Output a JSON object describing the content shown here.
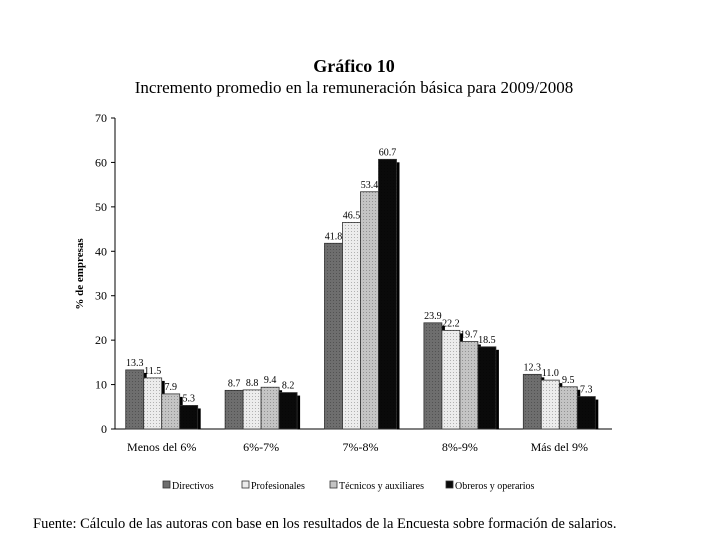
{
  "chart_data": {
    "type": "bar",
    "title": "Gráfico 10",
    "subtitle": "Incremento promedio en la remuneración básica para 2009/2008",
    "xlabel": "",
    "ylabel": "% de empresas",
    "ylim": [
      0,
      70
    ],
    "yticks": [
      "0",
      "10",
      "20",
      "30",
      "40",
      "50",
      "60",
      "70"
    ],
    "categories": [
      "Menos del 6%",
      "6%-7%",
      "7%-8%",
      "8%-9%",
      "Más del 9%"
    ],
    "series": [
      {
        "name": "Directivos",
        "values": [
          13.3,
          8.7,
          41.8,
          23.9,
          12.3
        ],
        "labels": [
          "13.3",
          "8.7",
          "41.8",
          "23.9",
          "12.3"
        ],
        "color": "#6e6e6e"
      },
      {
        "name": "Profesionales",
        "values": [
          11.5,
          8.8,
          46.5,
          22.2,
          11.0
        ],
        "labels": [
          "11.5",
          "8.8",
          "46.5",
          "22.2",
          "11.0"
        ],
        "color": "#ececec"
      },
      {
        "name": "Técnicos y auxiliares",
        "values": [
          7.9,
          9.4,
          53.4,
          19.7,
          9.5
        ],
        "labels": [
          "7.9",
          "9.4",
          "53.4",
          "19.7",
          "9.5"
        ],
        "color": "#c4c4c4"
      },
      {
        "name": "Obreros y operarios",
        "values": [
          5.3,
          8.2,
          60.7,
          18.5,
          7.3
        ],
        "labels": [
          "5.3",
          "8.2",
          "60.7",
          "18.5",
          "7.3"
        ],
        "color": "#0a0a0a"
      }
    ],
    "grid": false,
    "legend": "bottom"
  },
  "source": "Fuente: Cálculo de las autoras con base en los resultados de la Encuesta sobre formación de salarios."
}
